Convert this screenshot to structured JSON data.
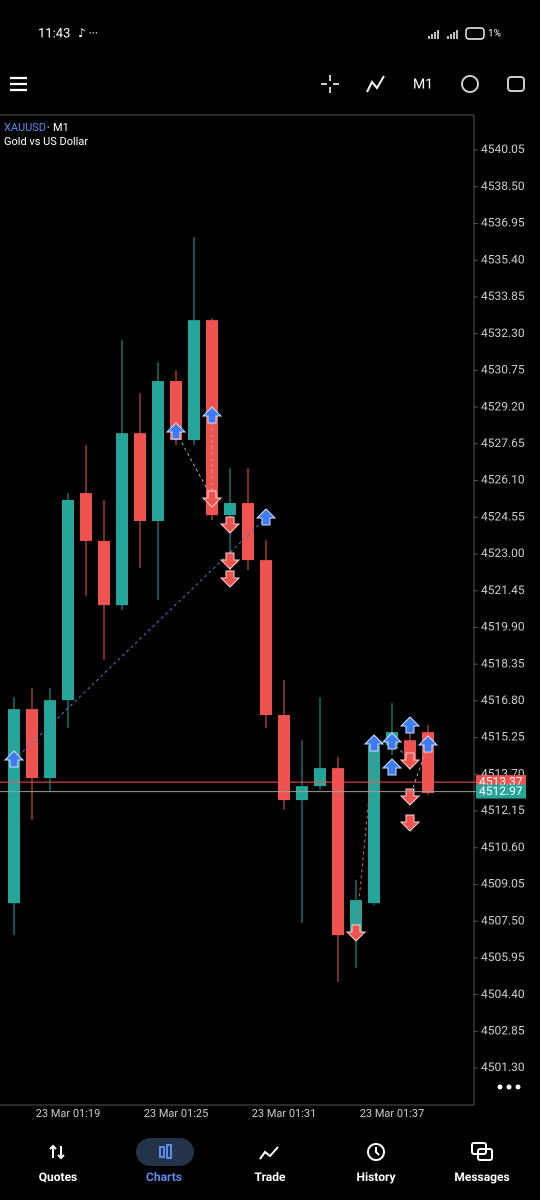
{
  "status_bar": {
    "time": "11:43",
    "battery": "1%"
  },
  "toolbar": {
    "timeframe": "M1"
  },
  "chart_data": {
    "type": "candlestick",
    "symbol": "XAUUSD",
    "timeframe": "M1",
    "description": "Gold vs US Dollar",
    "categories": [
      null,
      null,
      null,
      "23 Mar 01:19",
      null,
      null,
      null,
      null,
      null,
      "23 Mar 01:25",
      null,
      null,
      null,
      null,
      null,
      "23 Mar 01:31",
      null,
      null,
      null,
      null,
      null,
      "23 Mar 01:37",
      null,
      null
    ],
    "open": [
      4508.26,
      4516.45,
      4513.54,
      4516.83,
      4525.57,
      4523.55,
      4520.84,
      4528.1,
      4524.39,
      4530.3,
      4527.81,
      4532.87,
      4524.64,
      4525.15,
      4522.74,
      4516.2,
      4512.61,
      4513.2,
      4513.96,
      4506.91,
      4508.26,
      4514.93,
      4515.14,
      4515.48
    ],
    "high": [
      4516.96,
      4517.34,
      4517.34,
      4525.57,
      4527.6,
      4525.28,
      4532.03,
      4529.79,
      4531.1,
      4530.76,
      4536.38,
      4532.96,
      4526.63,
      4526.63,
      4523.59,
      4517.68,
      4515.14,
      4516.96,
      4514.43,
      4509.24,
      4515.14,
      4516.71,
      4515.99,
      4515.78
    ],
    "low": [
      4506.91,
      4511.77,
      4512.95,
      4515.65,
      4521.22,
      4518.52,
      4520.63,
      4522.41,
      4521.05,
      4527.6,
      4527.6,
      4524.43,
      4521.9,
      4522.32,
      4515.65,
      4512.19,
      4507.42,
      4513.03,
      4504.93,
      4505.52,
      4508.18,
      4514.51,
      4513.88,
      4512.82
    ],
    "close": [
      4516.45,
      4513.54,
      4516.83,
      4525.28,
      4523.55,
      4520.84,
      4528.1,
      4524.39,
      4530.3,
      4527.81,
      4532.87,
      4524.64,
      4525.15,
      4522.74,
      4516.2,
      4512.61,
      4513.2,
      4513.96,
      4506.91,
      4508.39,
      4514.93,
      4515.48,
      4514.3,
      4512.91
    ],
    "up_color": "#26a69a",
    "down_color": "#ef5350",
    "ylim": [
      4499.74,
      4541.53
    ],
    "yticks": [
      4540.05,
      {
        "value": 4538.5,
        "label": "4538.50"
      },
      4536.95,
      {
        "value": 4535.4,
        "label": "4535.40"
      },
      4533.85,
      {
        "value": 4532.3,
        "label": "4532.30"
      },
      4530.75,
      {
        "value": 4529.2,
        "label": "4529.20"
      },
      4527.65,
      {
        "value": 4526.1,
        "label": "4526.10"
      },
      4524.55,
      {
        "value": 4523,
        "label": "4523.00"
      },
      4521.45,
      {
        "value": 4519.9,
        "label": "4519.90"
      },
      4518.35,
      {
        "value": 4516.8,
        "label": "4516.80"
      },
      4515.25,
      {
        "value": 4513.7,
        "label": "4513.70"
      },
      4512.15,
      {
        "value": 4510.6,
        "label": "4510.60"
      },
      4509.05,
      {
        "value": 4507.5,
        "label": "4507.50"
      },
      4505.95,
      {
        "value": 4504.4,
        "label": "4504.40"
      },
      4502.85,
      {
        "value": 4501.3,
        "label": "4501.30"
      }
    ],
    "price_lines": [
      {
        "value": 4513.37,
        "line_color": "#ef5350",
        "box_color": "#ef5350"
      },
      {
        "value": 4512.97,
        "line_color": "#9e9e9e",
        "box_color": "#26a69a"
      }
    ]
  },
  "nav": {
    "items": [
      "Quotes",
      "Charts",
      "Trade",
      "History",
      "Messages"
    ],
    "active": 1
  }
}
